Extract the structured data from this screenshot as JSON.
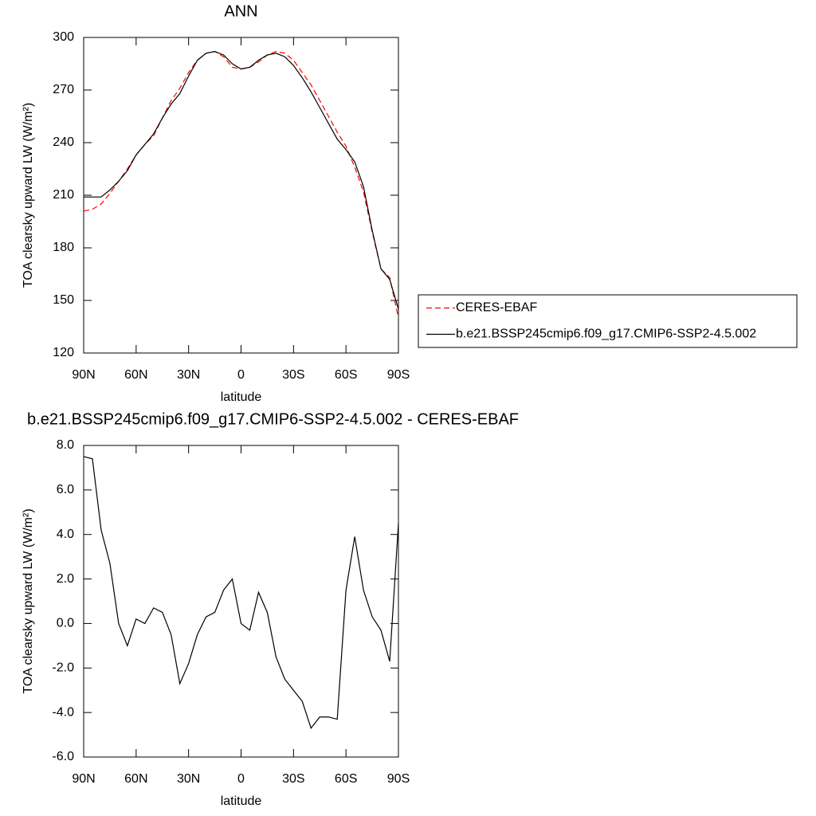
{
  "chart_data": [
    {
      "type": "line",
      "title": "ANN",
      "xlabel": "latitude",
      "ylabel": "TOA clearsky upward LW (W/m²)",
      "x": [
        90,
        85,
        80,
        75,
        70,
        65,
        60,
        55,
        50,
        45,
        40,
        35,
        30,
        25,
        20,
        15,
        10,
        5,
        0,
        -5,
        -10,
        -15,
        -20,
        -25,
        -30,
        -35,
        -40,
        -45,
        -50,
        -55,
        -60,
        -65,
        -70,
        -75,
        -80,
        -85,
        -90
      ],
      "series": [
        {
          "name": "CERES-EBAF",
          "color": "#ff0000",
          "dash": true,
          "values": [
            201,
            202,
            205,
            211,
            218,
            225,
            233,
            239,
            244,
            254,
            264,
            271,
            280,
            287,
            291,
            292,
            289,
            283,
            282,
            283,
            286,
            290,
            292,
            291,
            287,
            280,
            273,
            264,
            255,
            246,
            238,
            226,
            212,
            189,
            168,
            163,
            140
          ]
        },
        {
          "name": "b.e21.BSSP245cmip6.f09_g17.CMIP6-SSP2-4.5.002",
          "color": "#000000",
          "dash": false,
          "values": [
            209,
            209,
            209,
            213,
            218,
            224,
            233,
            239,
            245,
            254,
            262,
            268,
            278,
            287,
            291,
            292,
            290,
            285,
            282,
            283,
            287,
            290,
            291,
            289,
            284,
            277,
            269,
            260,
            251,
            242,
            236,
            229,
            215,
            190,
            168,
            162,
            145
          ]
        }
      ],
      "xlim": [
        90,
        -90
      ],
      "xticks": [
        {
          "value": 90,
          "label": "90N"
        },
        {
          "value": 60,
          "label": "60N"
        },
        {
          "value": 30,
          "label": "30N"
        },
        0,
        {
          "value": -30,
          "label": "30S"
        },
        {
          "value": -60,
          "label": "60S"
        },
        {
          "value": -90,
          "label": "90S"
        }
      ],
      "ylim": [
        120,
        300
      ],
      "yticks": [
        120,
        150,
        180,
        210,
        240,
        270,
        300
      ],
      "legend": "right"
    },
    {
      "type": "line",
      "title": "b.e21.BSSP245cmip6.f09_g17.CMIP6-SSP2-4.5.002 - CERES-EBAF",
      "xlabel": "latitude",
      "ylabel": "TOA clearsky upward LW (W/m²)",
      "x": [
        90,
        85,
        80,
        75,
        70,
        65,
        60,
        55,
        50,
        45,
        40,
        35,
        30,
        25,
        20,
        15,
        10,
        5,
        0,
        -5,
        -10,
        -15,
        -20,
        -25,
        -30,
        -35,
        -40,
        -45,
        -50,
        -55,
        -60,
        -65,
        -70,
        -75,
        -80,
        -85,
        -90
      ],
      "values": [
        7.5,
        7.4,
        4.2,
        2.7,
        0,
        -1.0,
        0.2,
        0,
        0.7,
        0.5,
        -0.5,
        -2.7,
        -1.8,
        -0.5,
        0.3,
        0.5,
        1.5,
        2.0,
        0,
        -0.3,
        1.4,
        0.5,
        -1.5,
        -2.5,
        -3.0,
        -3.5,
        -4.7,
        -4.2,
        -4.2,
        -4.3,
        1.5,
        3.9,
        1.5,
        0.3,
        -0.3,
        -1.7,
        4.5
      ],
      "color": "#000000",
      "xlim": [
        90,
        -90
      ],
      "xticks": [
        {
          "value": 90,
          "label": "90N"
        },
        {
          "value": 60,
          "label": "60N"
        },
        {
          "value": 30,
          "label": "30N"
        },
        0,
        {
          "value": -30,
          "label": "30S"
        },
        {
          "value": -60,
          "label": "60S"
        },
        {
          "value": -90,
          "label": "90S"
        }
      ],
      "ylim": [
        -6,
        8
      ],
      "yticks": [
        {
          "value": -6,
          "label": "-6.0"
        },
        {
          "value": -4,
          "label": "-4.0"
        },
        {
          "value": -2,
          "label": "-2.0"
        },
        {
          "value": 0,
          "label": "0.0"
        },
        {
          "value": 2,
          "label": "2.0"
        },
        {
          "value": 4,
          "label": "4.0"
        },
        {
          "value": 6,
          "label": "6.0"
        },
        {
          "value": 8,
          "label": "8.0"
        }
      ]
    }
  ]
}
